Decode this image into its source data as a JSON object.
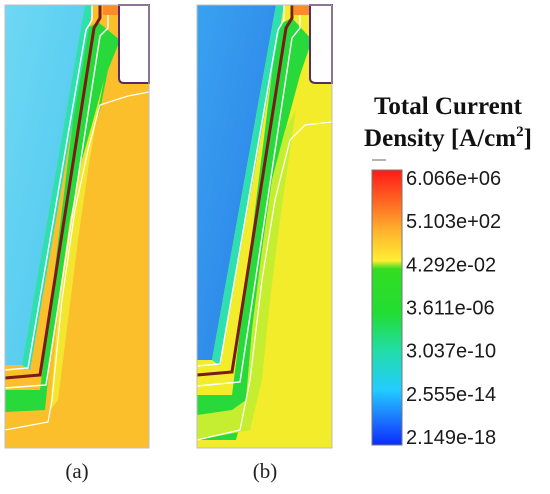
{
  "legend": {
    "title_line1": "Total Current",
    "title_line2": "Density [A/cm",
    "title_sup": "2",
    "title_end": "]",
    "ticks": [
      "6.066e+06",
      "5.103e+02",
      "4.292e-02",
      "3.611e-06",
      "3.037e-10",
      "2.555e-14",
      "2.149e-18"
    ],
    "colors": [
      "#ff1a1a",
      "#ff9a2a",
      "#ffee33",
      "#22dd22",
      "#22ddaa",
      "#22ccff",
      "#0a2cff"
    ]
  },
  "panels": [
    {
      "caption": "(a)",
      "fill_color": "#fbc02d",
      "channel_color": "#5ad0f0"
    },
    {
      "caption": "(b)",
      "fill_color": "#f4ed2a",
      "channel_color": "#3da0ee"
    }
  ]
}
